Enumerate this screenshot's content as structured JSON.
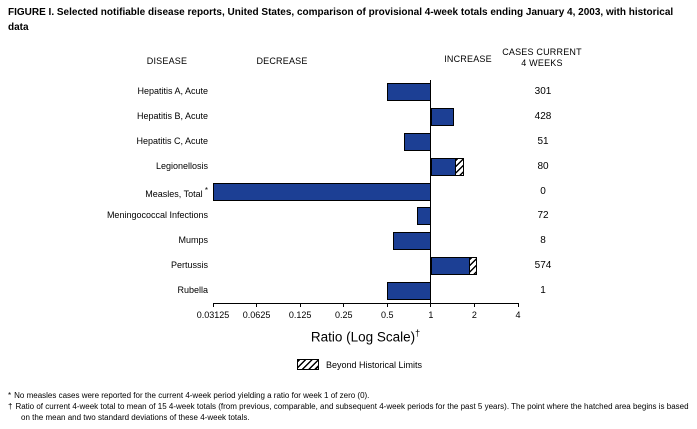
{
  "title": "FIGURE I. Selected notifiable disease reports, United States, comparison of provisional 4-week totals ending January 4, 2003, with historical data",
  "headers": {
    "disease": "DISEASE",
    "decrease": "DECREASE",
    "increase": "INCREASE",
    "cases_line1": "CASES CURRENT",
    "cases_line2": "4 WEEKS"
  },
  "axis": {
    "label": "Ratio (Log Scale)",
    "label_marker": "†",
    "tick_labels": [
      "0.03125",
      "0.0625",
      "0.125",
      "0.25",
      "0.5",
      "1",
      "2",
      "4"
    ]
  },
  "legend": {
    "label": "Beyond Historical Limits"
  },
  "footnotes": [
    {
      "marker": "*",
      "text": "No measles cases were reported for the current 4-week period yielding a ratio for week 1 of zero (0)."
    },
    {
      "marker": "†",
      "text": "Ratio of current 4-week total to mean of 15 4-week totals (from previous, comparable, and subsequent 4-week periods for the past 5 years). The point where the hatched area begins is based on the mean and two standard deviations of these 4-week totals."
    }
  ],
  "colors": {
    "bar": "#1C3F94",
    "axis": "#000000"
  },
  "chart_data": {
    "type": "bar",
    "orientation": "horizontal",
    "scale": "log2",
    "x_range": [
      0.03125,
      4
    ],
    "baseline": 1,
    "xlabel": "Ratio (Log Scale)",
    "rows": [
      {
        "disease": "Hepatitis A, Acute",
        "ratio": 0.5,
        "cases": 301,
        "beyond_historical_limits": false
      },
      {
        "disease": "Hepatitis B, Acute",
        "ratio": 1.45,
        "cases": 428,
        "beyond_historical_limits": false
      },
      {
        "disease": "Hepatitis C, Acute",
        "ratio": 0.65,
        "cases": 51,
        "beyond_historical_limits": false
      },
      {
        "disease": "Legionellosis",
        "ratio": 1.7,
        "cases": 80,
        "beyond_historical_limits": true,
        "beyond_from": 1.5
      },
      {
        "disease": "Measles, Total",
        "marker": "*",
        "ratio": 0,
        "cases": 0,
        "beyond_historical_limits": false
      },
      {
        "disease": "Meningococcal Infections",
        "ratio": 0.8,
        "cases": 72,
        "beyond_historical_limits": false
      },
      {
        "disease": "Mumps",
        "ratio": 0.55,
        "cases": 8,
        "beyond_historical_limits": false
      },
      {
        "disease": "Pertussis",
        "ratio": 2.1,
        "cases": 574,
        "beyond_historical_limits": true,
        "beyond_from": 1.85
      },
      {
        "disease": "Rubella",
        "ratio": 0.5,
        "cases": 1,
        "beyond_historical_limits": false
      }
    ]
  }
}
